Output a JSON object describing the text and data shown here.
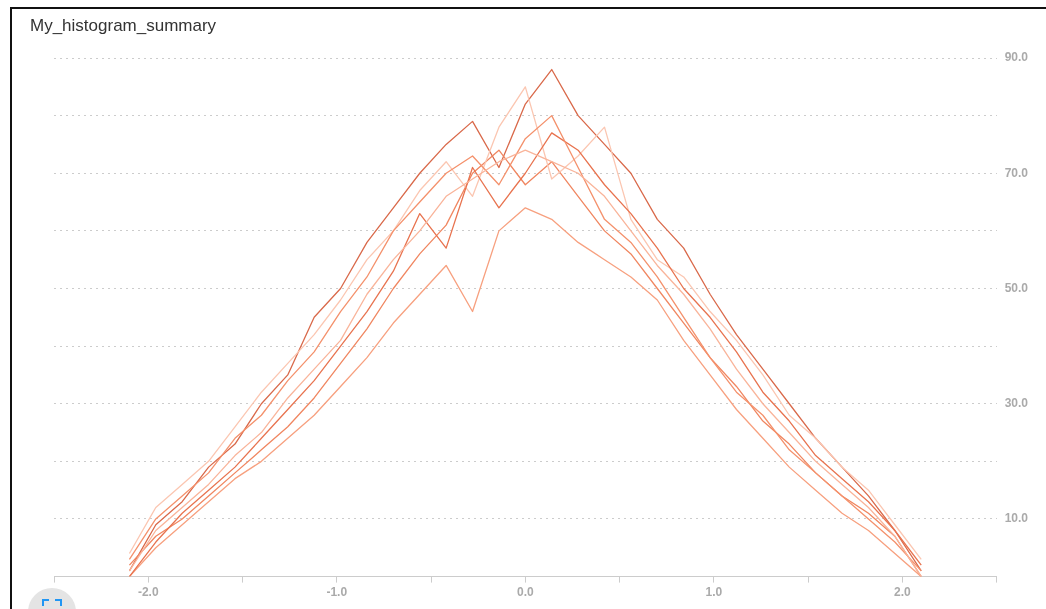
{
  "chart_data": {
    "type": "line",
    "title": "My_histogram_summary",
    "x": [
      -2.1,
      -1.96,
      -1.82,
      -1.68,
      -1.54,
      -1.4,
      -1.26,
      -1.12,
      -0.98,
      -0.84,
      -0.7,
      -0.56,
      -0.42,
      -0.28,
      -0.14,
      0,
      0.14,
      0.28,
      0.42,
      0.56,
      0.7,
      0.84,
      0.98,
      1.12,
      1.26,
      1.4,
      1.54,
      1.68,
      1.82,
      1.96,
      2.1
    ],
    "series": [
      {
        "color": "#f9b49a",
        "values": [
          1,
          8,
          12,
          16,
          21,
          25,
          31,
          36,
          41,
          49,
          55,
          60,
          66,
          69,
          72,
          74,
          72,
          70,
          66,
          60,
          54,
          49,
          43,
          36,
          30,
          25,
          20,
          16,
          12,
          7,
          0
        ]
      },
      {
        "color": "#f4916c",
        "values": [
          3,
          10,
          14,
          18,
          24,
          28,
          34,
          39,
          46,
          52,
          60,
          65,
          70,
          73,
          68,
          76,
          80,
          71,
          62,
          58,
          52,
          45,
          38,
          32,
          28,
          22,
          18,
          14,
          10,
          6,
          1
        ]
      },
      {
        "color": "#e8734f",
        "values": [
          0,
          6,
          11,
          15,
          19,
          24,
          29,
          34,
          40,
          46,
          53,
          63,
          57,
          71,
          64,
          70,
          77,
          74,
          68,
          63,
          57,
          50,
          45,
          39,
          32,
          27,
          21,
          17,
          13,
          8,
          2
        ]
      },
      {
        "color": "#fbc6b1",
        "values": [
          4,
          12,
          16,
          20,
          26,
          32,
          37,
          42,
          48,
          55,
          60,
          67,
          72,
          66,
          78,
          85,
          69,
          73,
          78,
          62,
          55,
          52,
          46,
          41,
          35,
          28,
          24,
          19,
          15,
          9,
          3
        ]
      },
      {
        "color": "#f08660",
        "values": [
          2,
          7,
          10,
          14,
          18,
          22,
          26,
          31,
          37,
          43,
          50,
          56,
          61,
          70,
          74,
          68,
          72,
          66,
          60,
          56,
          50,
          44,
          38,
          33,
          27,
          23,
          18,
          14,
          11,
          7,
          0
        ]
      },
      {
        "color": "#d9694a",
        "values": [
          1,
          9,
          13,
          19,
          23,
          30,
          35,
          45,
          50,
          58,
          64,
          70,
          75,
          79,
          71,
          82,
          88,
          80,
          75,
          70,
          62,
          57,
          49,
          42,
          36,
          30,
          24,
          19,
          14,
          8,
          1
        ]
      },
      {
        "color": "#f7a07f",
        "values": [
          0,
          5,
          9,
          13,
          17,
          20,
          24,
          28,
          33,
          38,
          44,
          49,
          54,
          46,
          60,
          64,
          62,
          58,
          55,
          52,
          48,
          41,
          35,
          29,
          24,
          19,
          15,
          11,
          8,
          4,
          0
        ]
      }
    ],
    "xlim": [
      -2.5,
      2.5
    ],
    "xticks": [
      {
        "value": -2.5,
        "label": null
      },
      {
        "value": -2,
        "label": "-2.0"
      },
      {
        "value": -1.5,
        "label": null
      },
      {
        "value": -1,
        "label": "-1.0"
      },
      {
        "value": -0.5,
        "label": null
      },
      {
        "value": 0,
        "label": "0.0"
      },
      {
        "value": 0.5,
        "label": null
      },
      {
        "value": 1,
        "label": "1.0"
      },
      {
        "value": 1.5,
        "label": null
      },
      {
        "value": 2,
        "label": "2.0"
      },
      {
        "value": 2.5,
        "label": null
      }
    ],
    "ylim": [
      0,
      90
    ],
    "yticks": [
      {
        "value": 0,
        "label": null
      },
      {
        "value": 10,
        "label": "10.0"
      },
      {
        "value": 20,
        "label": null
      },
      {
        "value": 30,
        "label": "30.0"
      },
      {
        "value": 40,
        "label": null
      },
      {
        "value": 50,
        "label": "50.0"
      },
      {
        "value": 60,
        "label": null
      },
      {
        "value": 70,
        "label": "70.0"
      },
      {
        "value": 80,
        "label": null
      },
      {
        "value": 90,
        "label": "90.0"
      }
    ],
    "grid": "y",
    "marker": "none",
    "line_style": "solid",
    "legend": false
  }
}
